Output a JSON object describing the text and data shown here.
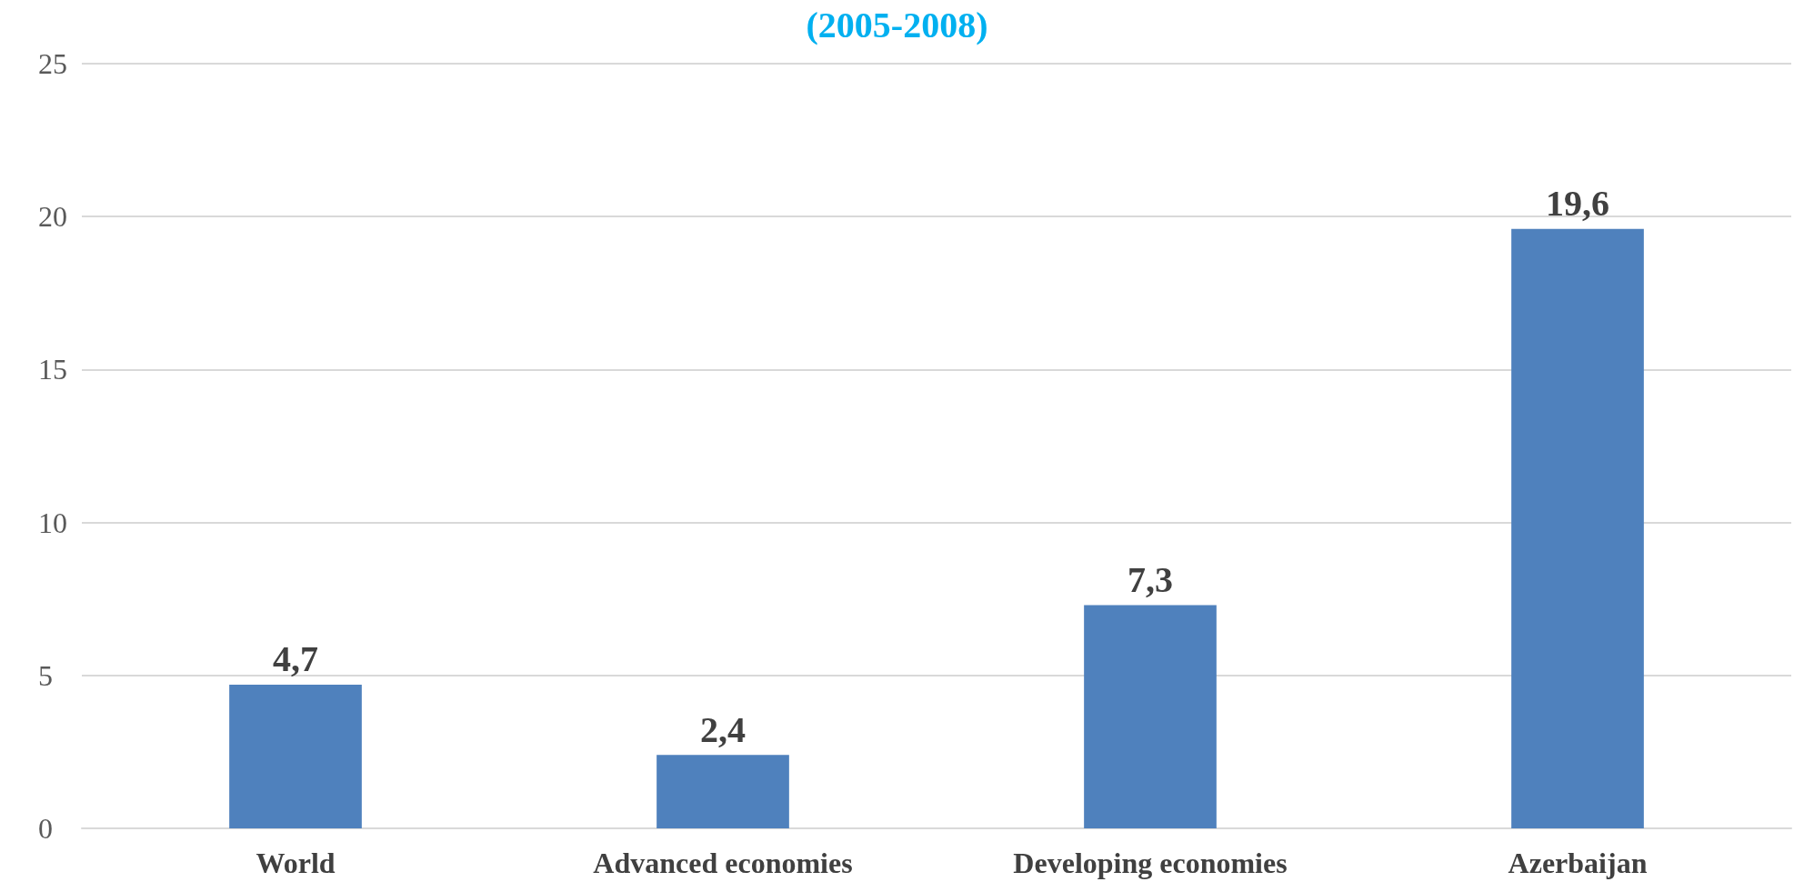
{
  "chart_data": {
    "type": "bar",
    "title": "(2005-2008)",
    "categories": [
      "World",
      "Advanced economies",
      "Developing economies",
      "Azerbaijan"
    ],
    "values": [
      4.7,
      2.4,
      7.3,
      19.6
    ],
    "color": "#4f81bd",
    "value_labels": [
      "4,7",
      "2,4",
      "7,3",
      "19,6"
    ],
    "ylim": [
      0,
      25
    ],
    "yticks": [
      0,
      5,
      10,
      15,
      20,
      25
    ],
    "grid": "y"
  }
}
